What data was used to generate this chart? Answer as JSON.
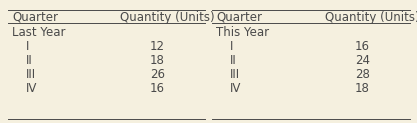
{
  "left_header": [
    "Quarter",
    "Quantity (Units)"
  ],
  "right_header": [
    "Quarter",
    "Quantity (Units)"
  ],
  "left_group_label": "Last Year",
  "right_group_label": "This Year",
  "left_quarters": [
    "I",
    "II",
    "III",
    "IV"
  ],
  "left_values": [
    "12",
    "18",
    "26",
    "16"
  ],
  "right_quarters": [
    "I",
    "II",
    "III",
    "IV"
  ],
  "right_values": [
    "16",
    "24",
    "28",
    "18"
  ],
  "bg_color": "#f5f0df",
  "text_color": "#4a4a4a",
  "header_fontsize": 8.5,
  "data_fontsize": 8.5
}
